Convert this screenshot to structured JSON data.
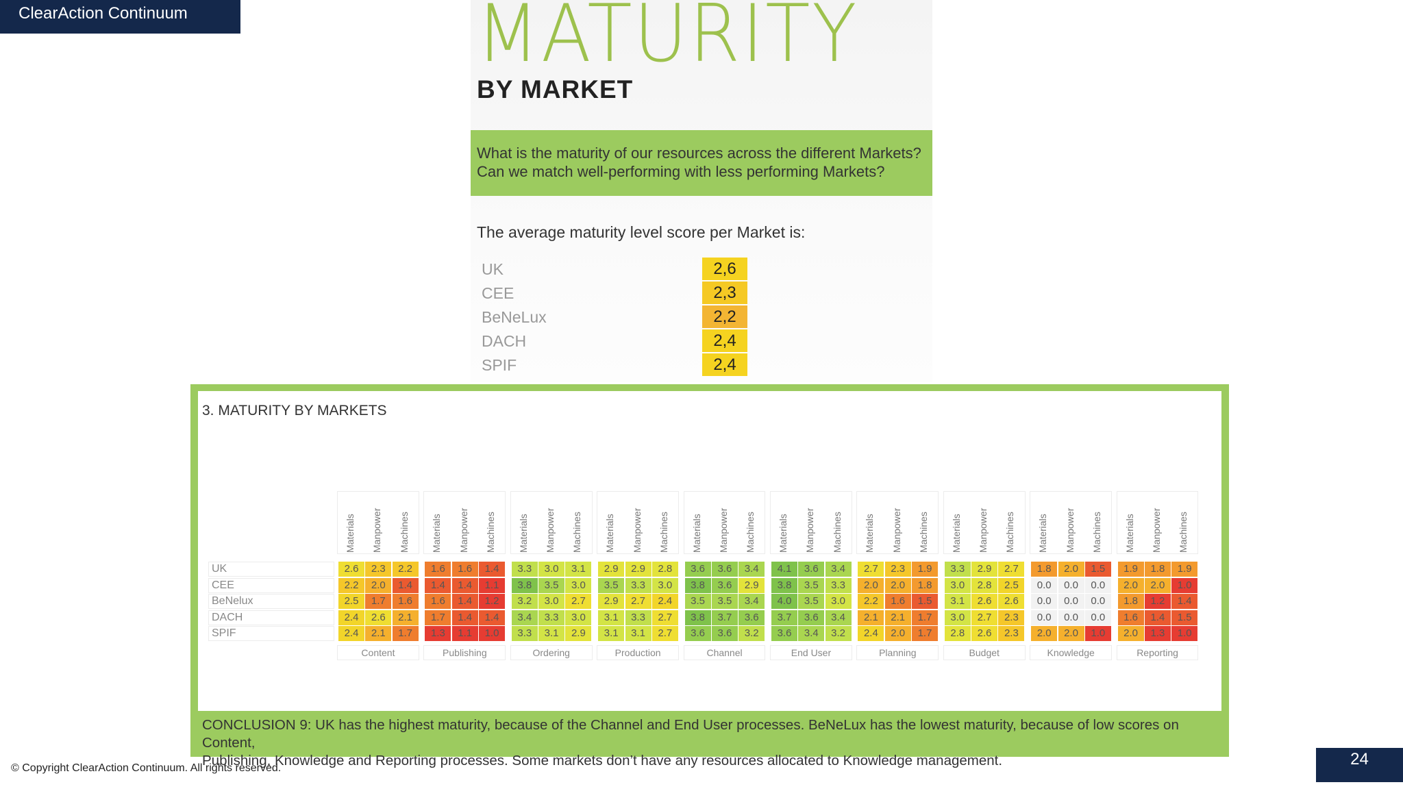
{
  "header": {
    "brand": "ClearAction Continuum"
  },
  "infographic": {
    "title": "MATURITY",
    "subtitle": "BY MARKET",
    "question_line1": "What is the maturity of our resources across the different Markets?",
    "question_line2": "Can we match well-performing with less performing Markets?",
    "avg_intro": "The average maturity level score per Market is:",
    "avg_scores": [
      {
        "market": "UK",
        "score": "2,6",
        "color": "#f5d320"
      },
      {
        "market": "CEE",
        "score": "2,3",
        "color": "#f5c924"
      },
      {
        "market": "BeNeLux",
        "score": "2,2",
        "color": "#f3b533"
      },
      {
        "market": "DACH",
        "score": "2,4",
        "color": "#f5d320"
      },
      {
        "market": "SPIF",
        "score": "2,4",
        "color": "#f5d320"
      }
    ]
  },
  "matrix": {
    "section_title": "3. MATURITY BY MARKETS",
    "resources": [
      "Materials",
      "Manpower",
      "Machines"
    ],
    "processes": [
      "Content",
      "Publishing",
      "Ordering",
      "Production",
      "Channel",
      "End User",
      "Planning",
      "Budget",
      "Knowledge",
      "Reporting"
    ],
    "markets": [
      "UK",
      "CEE",
      "BeNelux",
      "DACH",
      "SPIF"
    ],
    "values": [
      [
        "2.6",
        "2.3",
        "2.2",
        "1.6",
        "1.6",
        "1.4",
        "3.3",
        "3.0",
        "3.1",
        "2.9",
        "2.9",
        "2.8",
        "3.6",
        "3.6",
        "3.4",
        "4.1",
        "3.6",
        "3.4",
        "2.7",
        "2.3",
        "1.9",
        "3.3",
        "2.9",
        "2.7",
        "1.8",
        "2.0",
        "1.5",
        "1.9",
        "1.8",
        "1.9"
      ],
      [
        "2.2",
        "2.0",
        "1.4",
        "1.4",
        "1.4",
        "1.1",
        "3.8",
        "3.5",
        "3.0",
        "3.5",
        "3.3",
        "3.0",
        "3.8",
        "3.6",
        "2.9",
        "3.8",
        "3.5",
        "3.3",
        "2.0",
        "2.0",
        "1.8",
        "3.0",
        "2.8",
        "2.5",
        "0.0",
        "0.0",
        "0.0",
        "2.0",
        "2.0",
        "1.0"
      ],
      [
        "2.5",
        "1.7",
        "1.6",
        "1.6",
        "1.4",
        "1.2",
        "3.2",
        "3.0",
        "2.7",
        "2.9",
        "2.7",
        "2.4",
        "3.5",
        "3.5",
        "3.4",
        "4.0",
        "3.5",
        "3.0",
        "2.2",
        "1.6",
        "1.5",
        "3.1",
        "2.6",
        "2.6",
        "0.0",
        "0.0",
        "0.0",
        "1.8",
        "1.2",
        "1.4"
      ],
      [
        "2.4",
        "2.6",
        "2.1",
        "1.7",
        "1.4",
        "1.4",
        "3.4",
        "3.3",
        "3.0",
        "3.1",
        "3.3",
        "2.7",
        "3.8",
        "3.7",
        "3.6",
        "3.7",
        "3.6",
        "3.4",
        "2.1",
        "2.1",
        "1.7",
        "3.0",
        "2.7",
        "2.3",
        "0.0",
        "0.0",
        "0.0",
        "1.6",
        "1.4",
        "1.5"
      ],
      [
        "2.4",
        "2.1",
        "1.7",
        "1.3",
        "1.1",
        "1.0",
        "3.3",
        "3.1",
        "2.9",
        "3.1",
        "3.1",
        "2.7",
        "3.6",
        "3.6",
        "3.2",
        "3.6",
        "3.4",
        "3.2",
        "2.4",
        "2.0",
        "1.7",
        "2.8",
        "2.6",
        "2.3",
        "2.0",
        "2.0",
        "1.0",
        "2.0",
        "1.3",
        "1.0"
      ]
    ],
    "conclusion_line1": "CONCLUSION 9: UK has the highest maturity, because of the Channel and End User processes. BeNeLux has the lowest maturity, because of low scores on Content,",
    "conclusion_line2": "Publishing, Knowledge and Reporting processes. Some markets don’t have any resources allocated to Knowledge management."
  },
  "footer": {
    "copyright": "© Copyright ClearAction Continuum. All rights reserved."
  },
  "page": {
    "number": "24"
  }
}
